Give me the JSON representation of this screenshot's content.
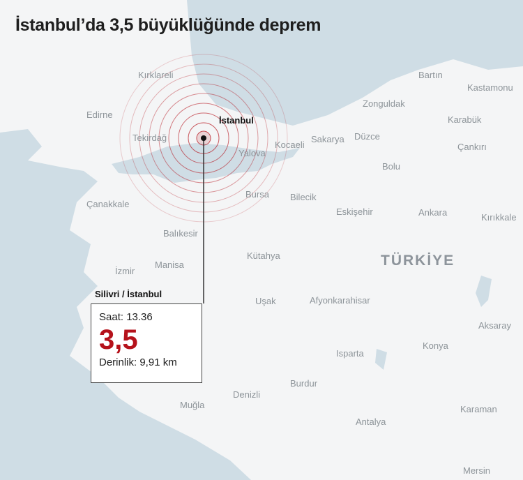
{
  "title": "İstanbul’da 3,5 büyüklüğünde deprem",
  "country_label": "TÜRKİYE",
  "epicenter": {
    "city_label": "İstanbul",
    "location": "Silivri / İstanbul",
    "time": "Saat: 13.36",
    "magnitude": "3,5",
    "depth": "Derinlik: 9,91 km"
  },
  "colors": {
    "accent": "#b5121b",
    "sea": "#cfdde5",
    "land": "#f4f5f6"
  },
  "places": [
    "Kırklareli",
    "Edirne",
    "Tekirdağ",
    "Yalova",
    "Kocaeli",
    "Sakarya",
    "Düzce",
    "Zonguldak",
    "Bartın",
    "Kastamonu",
    "Karabük",
    "Çankırı",
    "Bolu",
    "Bilecik",
    "Bursa",
    "Çanakkale",
    "Balıkesir",
    "Ankara",
    "Kırıkkale",
    "Eskişehir",
    "Kütahya",
    "İzmir",
    "Uşak",
    "Afyonkarahisar",
    "Aksaray",
    "Manisa",
    "Konya",
    "Isparta",
    "Burdur",
    "Denizli",
    "Muğla",
    "Karaman",
    "Antalya",
    "Mersin"
  ]
}
